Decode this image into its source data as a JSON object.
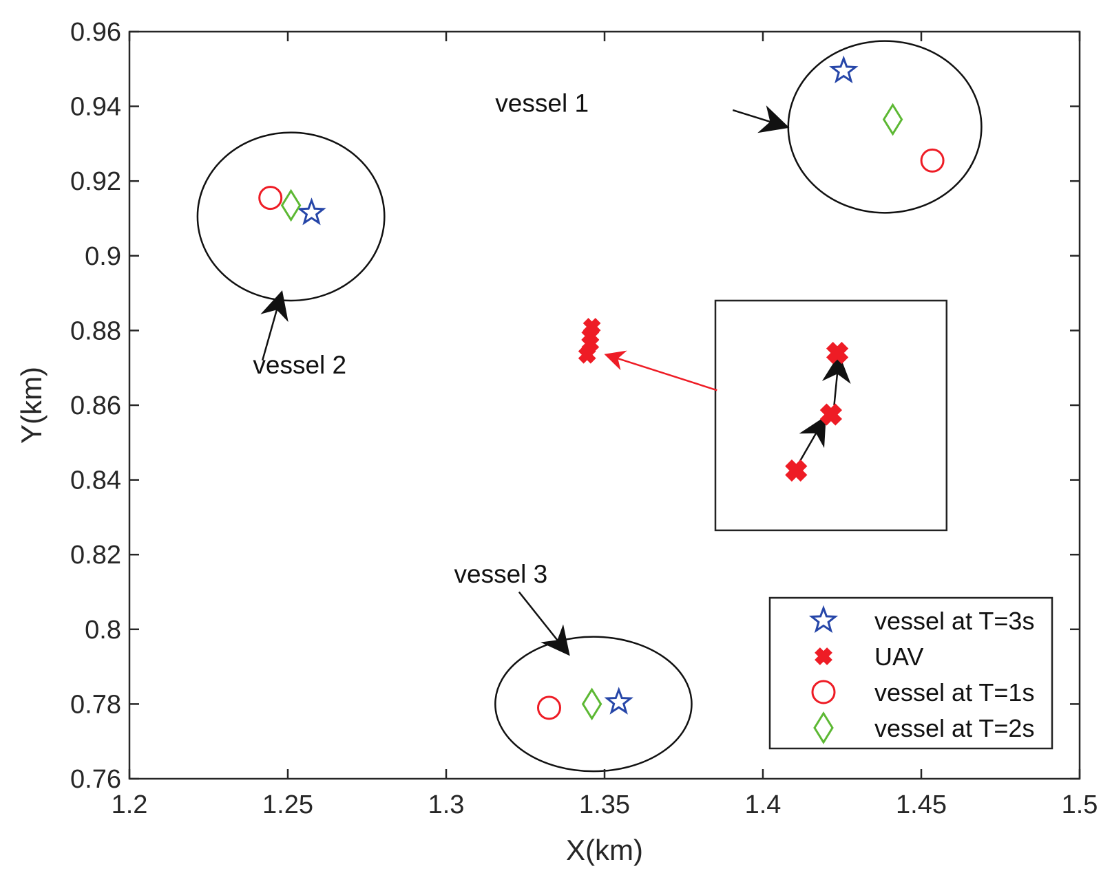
{
  "chart_data": {
    "type": "scatter",
    "xlabel": "X(km)",
    "ylabel": "Y(km)",
    "xlim": [
      1.2,
      1.5
    ],
    "ylim": [
      0.76,
      0.96
    ],
    "xticks": [
      1.2,
      1.25,
      1.3,
      1.35,
      1.4,
      1.45,
      1.5
    ],
    "xtick_labels": [
      "1.2",
      "1.25",
      "1.3",
      "1.35",
      "1.4",
      "1.45",
      "1.5"
    ],
    "yticks": [
      0.76,
      0.78,
      0.8,
      0.82,
      0.84,
      0.86,
      0.88,
      0.9,
      0.92,
      0.94,
      0.96
    ],
    "ytick_labels": [
      "0.76",
      "0.78",
      "0.8",
      "0.82",
      "0.84",
      "0.86",
      "0.88",
      "0.9",
      "0.92",
      "0.94",
      "0.96"
    ],
    "grid": false,
    "legend_position": "bottom-right",
    "colors": {
      "star": "#2646a8",
      "uav": "#ee1c25",
      "circle": "#ee1c25",
      "diamond": "#5cb833",
      "axis": "#262626"
    },
    "series": [
      {
        "name": "vessel at T=3s",
        "marker": "star",
        "points": [
          [
            1.4255,
            0.9495
          ],
          [
            1.2575,
            0.9115
          ],
          [
            1.3545,
            0.7805
          ]
        ]
      },
      {
        "name": "UAV",
        "marker": "x",
        "points": [
          [
            1.3445,
            0.8735
          ],
          [
            1.3455,
            0.8765
          ],
          [
            1.3455,
            0.8785
          ],
          [
            1.346,
            0.881
          ]
        ]
      },
      {
        "name": "vessel at T=1s",
        "marker": "circle",
        "points": [
          [
            1.4535,
            0.9255
          ],
          [
            1.2445,
            0.9155
          ],
          [
            1.3325,
            0.779
          ]
        ]
      },
      {
        "name": "vessel at T=2s",
        "marker": "diamond",
        "points": [
          [
            1.441,
            0.9365
          ],
          [
            1.251,
            0.9135
          ],
          [
            1.346,
            0.78
          ]
        ]
      }
    ],
    "ellipses": [
      {
        "name": "vessel-1-range",
        "cx": 1.4385,
        "cy": 0.9345,
        "rx": 0.0305,
        "ry": 0.023
      },
      {
        "name": "vessel-2-range",
        "cx": 1.251,
        "cy": 0.9105,
        "rx": 0.0295,
        "ry": 0.0225
      },
      {
        "name": "vessel-3-range",
        "cx": 1.3465,
        "cy": 0.78,
        "rx": 0.031,
        "ry": 0.018
      }
    ],
    "annotations": [
      {
        "text": "vessel 1",
        "x": 1.3155,
        "y": 0.9385,
        "arrow_from": [
          1.3905,
          0.939
        ],
        "arrow_to": [
          1.4075,
          0.9345
        ],
        "color": "#111111"
      },
      {
        "text": "vessel 2",
        "x": 1.239,
        "y": 0.8685,
        "arrow_from": [
          1.242,
          0.872
        ],
        "arrow_to": [
          1.248,
          0.89
        ],
        "color": "#111111"
      },
      {
        "text": "vessel 3",
        "x": 1.3025,
        "y": 0.8125,
        "arrow_from": [
          1.323,
          0.81
        ],
        "arrow_to": [
          1.3385,
          0.7935
        ],
        "color": "#111111"
      },
      {
        "text": "",
        "x": 0,
        "y": 0,
        "arrow_from": [
          1.3855,
          0.864
        ],
        "arrow_to": [
          1.3505,
          0.8735
        ],
        "color": "#ee1c25"
      }
    ],
    "inset": {
      "x_range": [
        1.385,
        1.458
      ],
      "y_range": [
        0.8265,
        0.888
      ],
      "uav_points": [
        [
          1.4105,
          0.8425
        ],
        [
          1.4215,
          0.8575
        ],
        [
          1.4235,
          0.874
        ]
      ],
      "arrows": [
        {
          "from": [
            1.411,
            0.844
          ],
          "to": [
            1.4195,
            0.8565
          ]
        },
        {
          "from": [
            1.4225,
            0.86
          ],
          "to": [
            1.424,
            0.873
          ]
        }
      ]
    }
  }
}
